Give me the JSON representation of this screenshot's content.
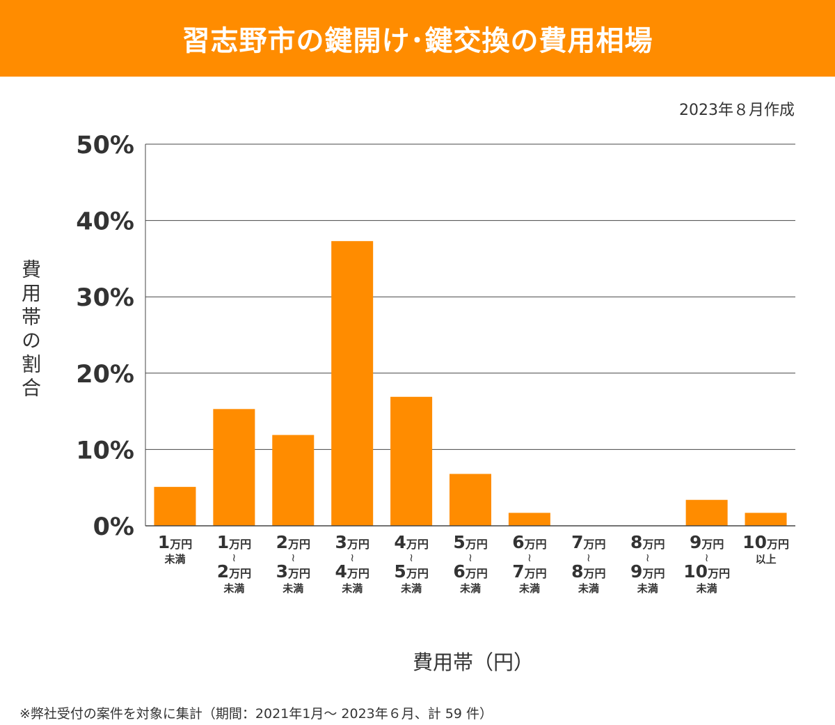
{
  "header": {
    "title": "習志野市の鍵開け･鍵交換の費用相場",
    "created": "2023年８月作成"
  },
  "footnote": "※弊社受付の案件を対象に集計（期間：2021年1月～ 2023年６月、計 59 件）",
  "chart_data": {
    "type": "bar",
    "title": "習志野市の鍵開け･鍵交換の費用相場",
    "xlabel": "費用帯（円）",
    "ylabel": "費用帯の割合",
    "ylim": [
      0,
      50
    ],
    "yticks": [
      "0%",
      "10%",
      "20%",
      "30%",
      "40%",
      "50%"
    ],
    "ytick_values": [
      0,
      10,
      20,
      30,
      40,
      50
    ],
    "grid": true,
    "bar_color": "#ff8c00",
    "categories": [
      {
        "from": "1",
        "unit": "万円",
        "to": null,
        "to_unit": null,
        "suffix": "未満"
      },
      {
        "from": "1",
        "unit": "万円",
        "tilde": "～",
        "to": "2",
        "to_unit": "万円",
        "suffix": "未満"
      },
      {
        "from": "2",
        "unit": "万円",
        "tilde": "～",
        "to": "3",
        "to_unit": "万円",
        "suffix": "未満"
      },
      {
        "from": "3",
        "unit": "万円",
        "tilde": "～",
        "to": "4",
        "to_unit": "万円",
        "suffix": "未満"
      },
      {
        "from": "4",
        "unit": "万円",
        "tilde": "～",
        "to": "5",
        "to_unit": "万円",
        "suffix": "未満"
      },
      {
        "from": "5",
        "unit": "万円",
        "tilde": "～",
        "to": "6",
        "to_unit": "万円",
        "suffix": "未満"
      },
      {
        "from": "6",
        "unit": "万円",
        "tilde": "～",
        "to": "7",
        "to_unit": "万円",
        "suffix": "未満"
      },
      {
        "from": "7",
        "unit": "万円",
        "tilde": "～",
        "to": "8",
        "to_unit": "万円",
        "suffix": "未満"
      },
      {
        "from": "8",
        "unit": "万円",
        "tilde": "～",
        "to": "9",
        "to_unit": "万円",
        "suffix": "未満"
      },
      {
        "from": "9",
        "unit": "万円",
        "tilde": "～",
        "to": "10",
        "to_unit": "万円",
        "suffix": "未満"
      },
      {
        "from": "10",
        "unit": "万円",
        "to": null,
        "to_unit": null,
        "suffix": "以上"
      }
    ],
    "values": [
      5.1,
      15.3,
      11.9,
      37.3,
      16.9,
      6.8,
      1.7,
      0,
      0,
      3.4,
      1.7
    ]
  }
}
